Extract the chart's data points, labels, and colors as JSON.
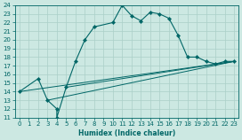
{
  "xlabel": "Humidex (Indice chaleur)",
  "xlim": [
    -0.5,
    23.5
  ],
  "ylim": [
    11,
    24
  ],
  "bg_color": "#cce8e2",
  "line_color": "#006666",
  "grid_color": "#aacfc8",
  "line1_x": [
    0,
    2,
    3,
    4,
    4,
    5,
    6,
    7,
    8,
    10,
    11,
    12,
    13,
    14,
    15,
    16,
    17,
    18,
    19,
    20,
    21,
    22,
    23
  ],
  "line1_y": [
    14.0,
    15.5,
    13.0,
    12.0,
    11.0,
    14.5,
    17.5,
    20.0,
    21.5,
    22.0,
    24.0,
    22.8,
    22.2,
    23.2,
    23.0,
    22.5,
    20.5,
    18.0,
    18.0,
    17.5,
    17.2,
    17.5,
    17.5
  ],
  "line2_x": [
    0,
    23
  ],
  "line2_y": [
    14.0,
    17.5
  ],
  "line3_x": [
    3,
    23
  ],
  "line3_y": [
    13.0,
    17.5
  ],
  "line4_x": [
    5,
    23
  ],
  "line4_y": [
    14.5,
    17.5
  ],
  "xticks": [
    0,
    1,
    2,
    3,
    4,
    5,
    6,
    7,
    8,
    9,
    10,
    11,
    12,
    13,
    14,
    15,
    16,
    17,
    18,
    19,
    20,
    21,
    22,
    23
  ],
  "yticks": [
    11,
    12,
    13,
    14,
    15,
    16,
    17,
    18,
    19,
    20,
    21,
    22,
    23,
    24
  ],
  "tick_fontsize": 5.0,
  "xlabel_fontsize": 5.5
}
